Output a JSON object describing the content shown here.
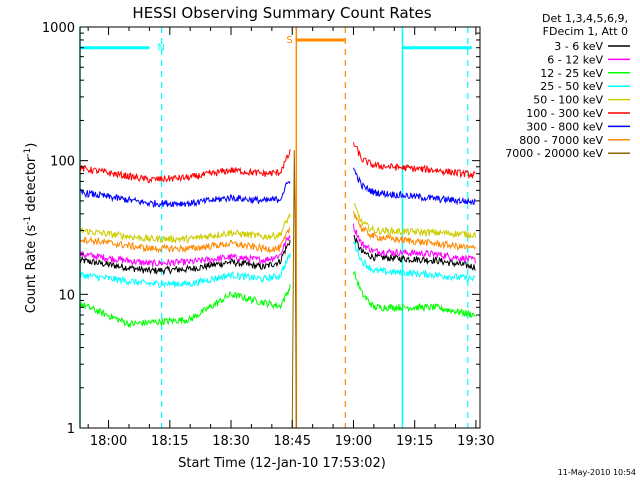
{
  "chart_data": {
    "type": "line",
    "title": "HESSI Observing Summary Count Rates",
    "xlabel": "Start Time (12-Jan-10 17:53:02)",
    "ylabel_main": "Count Rate (s",
    "ylabel_sup1": "-1",
    "ylabel_mid": " detector",
    "ylabel_sup2": "-1",
    "ylabel_end": ")",
    "ylog": true,
    "xlim": [
      "17:53",
      "19:31"
    ],
    "ylim": [
      1,
      1000
    ],
    "x_ticks": [
      {
        "label": "18:00",
        "t": "18:00"
      },
      {
        "label": "18:15",
        "t": "18:15"
      },
      {
        "label": "18:30",
        "t": "18:30"
      },
      {
        "label": "18:45",
        "t": "18:45"
      },
      {
        "label": "19:00",
        "t": "19:00"
      },
      {
        "label": "19:15",
        "t": "19:15"
      },
      {
        "label": "19:30",
        "t": "19:30"
      }
    ],
    "y_ticks": [
      {
        "label": "1",
        "v": 1
      },
      {
        "label": "10",
        "v": 10
      },
      {
        "label": "100",
        "v": 100
      },
      {
        "label": "1000",
        "v": 1000
      }
    ],
    "legend_header": [
      "Det 1,3,4,5,6,9,",
      "FDecim 1, Att 0"
    ],
    "series": [
      {
        "name": "3 - 6 keV",
        "color": "#000000",
        "profile": [
          [
            "17:53",
            18
          ],
          [
            "18:10",
            15
          ],
          [
            "18:20",
            15.5
          ],
          [
            "18:30",
            17.5
          ],
          [
            "18:38",
            16
          ],
          [
            "18:43",
            18
          ],
          [
            "19:00",
            22
          ],
          [
            "19:05",
            19
          ],
          [
            "19:20",
            18
          ],
          [
            "19:30",
            16
          ]
        ]
      },
      {
        "name": "6 - 12 keV",
        "color": "#ff00ff",
        "profile": [
          [
            "17:53",
            20
          ],
          [
            "18:10",
            17
          ],
          [
            "18:20",
            17.5
          ],
          [
            "18:30",
            19
          ],
          [
            "18:38",
            18
          ],
          [
            "18:43",
            20
          ],
          [
            "19:00",
            26
          ],
          [
            "19:05",
            21
          ],
          [
            "19:20",
            20
          ],
          [
            "19:30",
            18
          ]
        ]
      },
      {
        "name": "12 - 25 keV",
        "color": "#00ff00",
        "profile": [
          [
            "17:53",
            8.5
          ],
          [
            "18:05",
            6
          ],
          [
            "18:20",
            6.5
          ],
          [
            "18:30",
            10
          ],
          [
            "18:36",
            9
          ],
          [
            "18:43",
            8
          ],
          [
            "19:00",
            12
          ],
          [
            "19:05",
            8
          ],
          [
            "19:20",
            8
          ],
          [
            "19:30",
            7
          ]
        ]
      },
      {
        "name": "25 - 50 keV",
        "color": "#00ffff",
        "profile": [
          [
            "17:53",
            14
          ],
          [
            "18:10",
            12
          ],
          [
            "18:20",
            12
          ],
          [
            "18:30",
            14
          ],
          [
            "18:38",
            13
          ],
          [
            "18:43",
            14
          ],
          [
            "19:00",
            20
          ],
          [
            "19:05",
            15
          ],
          [
            "19:20",
            14
          ],
          [
            "19:30",
            13
          ]
        ]
      },
      {
        "name": "50 - 100 keV",
        "color": "#cccc00",
        "profile": [
          [
            "17:53",
            30
          ],
          [
            "18:10",
            26
          ],
          [
            "18:20",
            26
          ],
          [
            "18:30",
            29
          ],
          [
            "18:38",
            27
          ],
          [
            "18:43",
            28
          ],
          [
            "19:00",
            38
          ],
          [
            "19:05",
            30
          ],
          [
            "19:20",
            29
          ],
          [
            "19:30",
            28
          ]
        ]
      },
      {
        "name": "100 - 300 keV",
        "color": "#ff0000",
        "profile": [
          [
            "17:53",
            88
          ],
          [
            "18:10",
            72
          ],
          [
            "18:20",
            75
          ],
          [
            "18:30",
            85
          ],
          [
            "18:38",
            80
          ],
          [
            "18:43",
            82
          ],
          [
            "19:00",
            110
          ],
          [
            "19:05",
            92
          ],
          [
            "19:20",
            85
          ],
          [
            "19:30",
            78
          ]
        ]
      },
      {
        "name": "300 - 800 keV",
        "color": "#0000ff",
        "profile": [
          [
            "17:53",
            58
          ],
          [
            "18:10",
            48
          ],
          [
            "18:20",
            48
          ],
          [
            "18:30",
            53
          ],
          [
            "18:38",
            50
          ],
          [
            "18:43",
            52
          ],
          [
            "19:00",
            70
          ],
          [
            "19:05",
            58
          ],
          [
            "19:20",
            52
          ],
          [
            "19:30",
            49
          ]
        ]
      },
      {
        "name": "800 - 7000 keV",
        "color": "#ff8800",
        "profile": [
          [
            "17:53",
            26
          ],
          [
            "18:10",
            22
          ],
          [
            "18:20",
            22
          ],
          [
            "18:30",
            24
          ],
          [
            "18:38",
            22
          ],
          [
            "18:43",
            22
          ],
          [
            "19:00",
            34
          ],
          [
            "19:05",
            27
          ],
          [
            "19:20",
            24
          ],
          [
            "19:30",
            22
          ]
        ]
      },
      {
        "name": "7000 - 20000 keV",
        "color": "#886600",
        "profile": [
          [
            "18:45",
            1
          ],
          [
            "18:46",
            1
          ]
        ]
      }
    ],
    "data_gaps": [
      [
        "18:46",
        "19:00"
      ]
    ],
    "annotations": [
      {
        "label": "N",
        "color": "#00ffff",
        "bar": [
          "17:53",
          "18:10"
        ],
        "level": 700,
        "dashed_lines": [
          "18:13",
          "19:28"
        ],
        "solid_lines": [
          "17:53",
          "19:12"
        ],
        "bar2": [
          "19:12",
          "19:29"
        ]
      },
      {
        "label": "S",
        "color": "#ff8800",
        "bar": [
          "18:46",
          "18:58"
        ],
        "level": 800,
        "dashed_lines": [
          "18:58"
        ],
        "solid_lines": [
          "18:46"
        ]
      }
    ],
    "grid": false
  },
  "footer": {
    "timestamp": "11-May-2010 10:54"
  }
}
